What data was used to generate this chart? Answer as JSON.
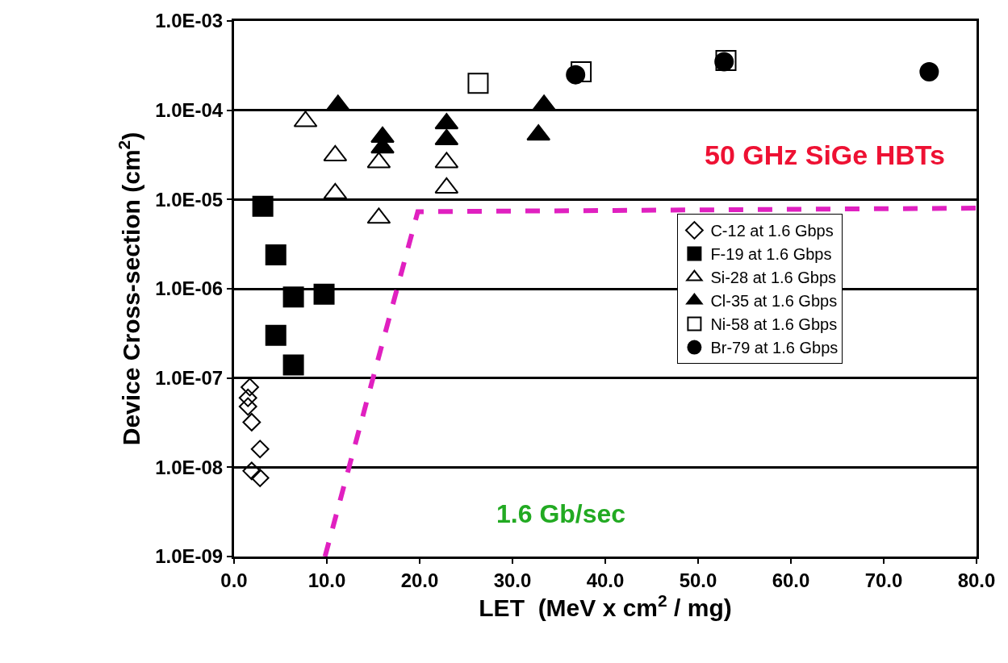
{
  "chart_data": {
    "type": "scatter",
    "xlabel": "LET  (MeV x cm$^{2}$ / mg)",
    "ylabel": "Device Cross-section (cm$^{2}$)",
    "log": "y",
    "grid": "y",
    "legend": "right",
    "xlim": [
      0,
      80
    ],
    "xticks": [
      {
        "value": 0,
        "label": "0.0"
      },
      {
        "value": 10,
        "label": "10.0"
      },
      {
        "value": 20,
        "label": "20.0"
      },
      {
        "value": 30,
        "label": "30.0"
      },
      {
        "value": 40,
        "label": "40.0"
      },
      {
        "value": 50,
        "label": "50.0"
      },
      {
        "value": 60,
        "label": "60.0"
      },
      {
        "value": 70,
        "label": "70.0"
      },
      {
        "value": 80,
        "label": "80.0"
      }
    ],
    "ylim": [
      1e-09,
      0.001
    ],
    "yticks": [
      {
        "value": 1e-09,
        "label": "1.0E-09"
      },
      {
        "value": 1e-08,
        "label": "1.0E-08"
      },
      {
        "value": 1e-07,
        "label": "1.0E-07"
      },
      {
        "value": 1e-06,
        "label": "1.0E-06"
      },
      {
        "value": 1e-05,
        "label": "1.0E-05"
      },
      {
        "value": 0.0001,
        "label": "1.0E-04"
      },
      {
        "value": 0.001,
        "label": "1.0E-03"
      }
    ],
    "annotations": [
      "50 GHz SiGe HBTs",
      "1.6 Gb/sec"
    ],
    "series": [
      {
        "name": "C-12 at 1.6 Gbps",
        "color": "#000000",
        "marker": "diamond-open",
        "x": [
          1.7,
          1.5,
          1.5,
          1.9,
          2.8,
          1.9,
          2.8
        ],
        "values": [
          7.9e-08,
          6e-08,
          4.8e-08,
          3.2e-08,
          1.6e-08,
          9.1e-09,
          7.6e-09
        ]
      },
      {
        "name": "F-19 at 1.6 Gbps",
        "color": "#000000",
        "marker": "square",
        "x": [
          3.1,
          4.5,
          6.4,
          9.7,
          4.5,
          6.4
        ],
        "values": [
          8.4e-06,
          2.4e-06,
          8.1e-07,
          8.7e-07,
          3e-07,
          1.4e-07
        ]
      },
      {
        "name": "Si-28 at 1.6 Gbps",
        "color": "#000000",
        "marker": "triangle-open",
        "x": [
          7.7,
          10.9,
          10.9,
          15.6,
          15.6,
          22.9,
          22.9
        ],
        "values": [
          7.5e-05,
          3.1e-05,
          1.17e-05,
          2.6e-05,
          6.2e-06,
          2.6e-05,
          1.35e-05
        ]
      },
      {
        "name": "Cl-35 at 1.6 Gbps",
        "color": "#000000",
        "marker": "triangle",
        "x": [
          11.2,
          16.0,
          16.0,
          22.9,
          22.9,
          33.4,
          32.8
        ],
        "values": [
          0.000114,
          5e-05,
          3.8e-05,
          7.1e-05,
          4.7e-05,
          0.000114,
          5.3e-05
        ]
      },
      {
        "name": "Ni-58 at 1.6 Gbps",
        "color": "#000000",
        "marker": "square-open",
        "x": [
          26.3,
          37.4,
          53.0
        ],
        "values": [
          0.0002,
          0.00027,
          0.00036
        ]
      },
      {
        "name": "Br-79 at 1.6 Gbps",
        "color": "#000000",
        "marker": "circle",
        "x": [
          36.8,
          52.8,
          74.9
        ],
        "values": [
          0.00025,
          0.00035,
          0.00027
        ]
      },
      {
        "type": "line",
        "color": "#e020c0",
        "line_style": "dashed",
        "marker": "none",
        "x": [
          9.8,
          19.8,
          80
        ],
        "values": [
          1e-09,
          7.3e-06,
          8e-06
        ]
      }
    ]
  }
}
